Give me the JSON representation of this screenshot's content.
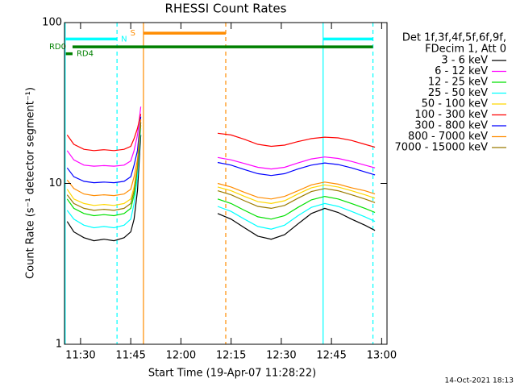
{
  "chart_data": {
    "type": "line",
    "title": "RHESSI Count Rates",
    "x_label": "Start Time (19-Apr-07 11:28:22)",
    "y_label": "Count Rate (s⁻¹ detector segment⁻¹)",
    "legend_header": [
      "Det 1f,3f,4f,5f,6f,9f,",
      "FDecim 1, Att 0"
    ],
    "footer": "14-Oct-2021 18:13",
    "log_y": true,
    "xlim": [
      25.2,
      121.6
    ],
    "ylim": [
      1,
      100
    ],
    "xticks": [
      {
        "value": 30,
        "label": "11:30"
      },
      {
        "value": 45,
        "label": "11:45"
      },
      {
        "value": 60,
        "label": "12:00"
      },
      {
        "value": 75,
        "label": "12:15"
      },
      {
        "value": 90,
        "label": "12:30"
      },
      {
        "value": 105,
        "label": "12:45"
      },
      {
        "value": 120,
        "label": "13:00"
      }
    ],
    "yticks": [
      1,
      10,
      100
    ],
    "x": [
      26,
      28,
      31,
      34,
      37,
      40,
      43,
      45,
      46,
      47,
      48,
      60,
      71,
      75,
      79,
      83,
      87,
      91,
      95,
      99,
      103,
      107,
      111,
      115,
      118
    ],
    "series": [
      {
        "name": "3 - 6 keV",
        "color": "#000000",
        "values": [
          5.8,
          5.0,
          4.6,
          4.4,
          4.5,
          4.4,
          4.6,
          5.0,
          6,
          9,
          20,
          null,
          6.5,
          6.0,
          5.3,
          4.7,
          4.5,
          4.8,
          5.6,
          6.5,
          7.0,
          6.6,
          6.0,
          5.5,
          5.1
        ]
      },
      {
        "name": "6 - 12 keV",
        "color": "#ff00ff",
        "values": [
          16,
          14,
          13,
          12.8,
          12.9,
          12.8,
          13,
          13.8,
          16,
          20,
          30,
          null,
          14.5,
          14.0,
          13.3,
          12.6,
          12.3,
          12.6,
          13.4,
          14.2,
          14.6,
          14.3,
          13.7,
          13.0,
          12.5
        ]
      },
      {
        "name": "12 - 25 keV",
        "color": "#00e000",
        "values": [
          8.0,
          7.0,
          6.5,
          6.3,
          6.4,
          6.3,
          6.5,
          7.0,
          8.5,
          12,
          23,
          null,
          8.0,
          7.5,
          6.8,
          6.2,
          6.0,
          6.3,
          7.1,
          7.9,
          8.3,
          8.0,
          7.5,
          7.0,
          6.6
        ]
      },
      {
        "name": "25 - 50 keV",
        "color": "#00ffff",
        "values": [
          6.8,
          6.0,
          5.5,
          5.3,
          5.4,
          5.3,
          5.5,
          6.0,
          7.5,
          11,
          22,
          null,
          7.2,
          6.7,
          6.0,
          5.4,
          5.2,
          5.5,
          6.3,
          7.1,
          7.5,
          7.2,
          6.7,
          6.2,
          5.8
        ]
      },
      {
        "name": "50 - 100 keV",
        "color": "#ffd700",
        "values": [
          9.2,
          8.0,
          7.5,
          7.3,
          7.4,
          7.3,
          7.5,
          8.0,
          9.5,
          13,
          24,
          null,
          9.5,
          9.0,
          8.3,
          7.7,
          7.5,
          7.8,
          8.6,
          9.4,
          9.8,
          9.5,
          9.0,
          8.5,
          8.1
        ]
      },
      {
        "name": "100 - 300 keV",
        "color": "#ff0000",
        "values": [
          20,
          17.5,
          16.3,
          16,
          16.2,
          16,
          16.3,
          17,
          19,
          22,
          27,
          null,
          20.5,
          20.0,
          18.8,
          17.5,
          17,
          17.3,
          18.2,
          19.0,
          19.4,
          19.2,
          18.5,
          17.5,
          16.8
        ]
      },
      {
        "name": "300 - 800 keV",
        "color": "#0000ff",
        "values": [
          12.5,
          11,
          10.3,
          10.1,
          10.2,
          10.1,
          10.3,
          11,
          13,
          16,
          26,
          null,
          13.5,
          13.0,
          12.2,
          11.5,
          11.2,
          11.5,
          12.3,
          13.0,
          13.4,
          13.1,
          12.5,
          11.8,
          11.3
        ]
      },
      {
        "name": "800 - 7000 keV",
        "color": "#ff8c00",
        "values": [
          10.5,
          9.3,
          8.6,
          8.4,
          8.5,
          8.4,
          8.6,
          9.2,
          11,
          14,
          25,
          null,
          10.0,
          9.5,
          8.8,
          8.2,
          8.0,
          8.3,
          9.0,
          9.8,
          10.2,
          9.9,
          9.4,
          9.0,
          8.6
        ]
      },
      {
        "name": "7000 - 15000 keV",
        "color": "#9a7b00",
        "values": [
          8.5,
          7.5,
          7.0,
          6.8,
          6.9,
          6.8,
          7.0,
          7.5,
          9,
          12.5,
          24,
          null,
          9.0,
          8.5,
          7.8,
          7.2,
          7.0,
          7.3,
          8.1,
          8.9,
          9.3,
          9.0,
          8.5,
          8.0,
          7.6
        ]
      }
    ],
    "intervals": [
      {
        "label": "N",
        "color": "#00ffff",
        "start": 25.6,
        "end": 40.9,
        "level": 79
      },
      {
        "color": "#00ffff",
        "start": 102.5,
        "end": 117.4,
        "level": 79
      },
      {
        "label": "S",
        "color": "#ff8c00",
        "start": 48.8,
        "end": 73.4,
        "level": 86
      },
      {
        "label": "RD0",
        "color": "#008000",
        "start": 27.6,
        "end": 117.4,
        "level": 70.6
      },
      {
        "label": "RD4",
        "color": "#008000",
        "start": 25.6,
        "end": 27.6,
        "level": 64
      }
    ],
    "vlines": [
      {
        "x": 25.4,
        "color": "#00ffff",
        "dashed": false
      },
      {
        "x": 40.9,
        "color": "#00ffff",
        "dashed": true
      },
      {
        "x": 48.8,
        "color": "#ff8c00",
        "dashed": false
      },
      {
        "x": 73.4,
        "color": "#ff8c00",
        "dashed": true
      },
      {
        "x": 102.5,
        "color": "#00ffff",
        "dashed": false
      },
      {
        "x": 117.4,
        "color": "#00ffff",
        "dashed": true
      }
    ]
  }
}
